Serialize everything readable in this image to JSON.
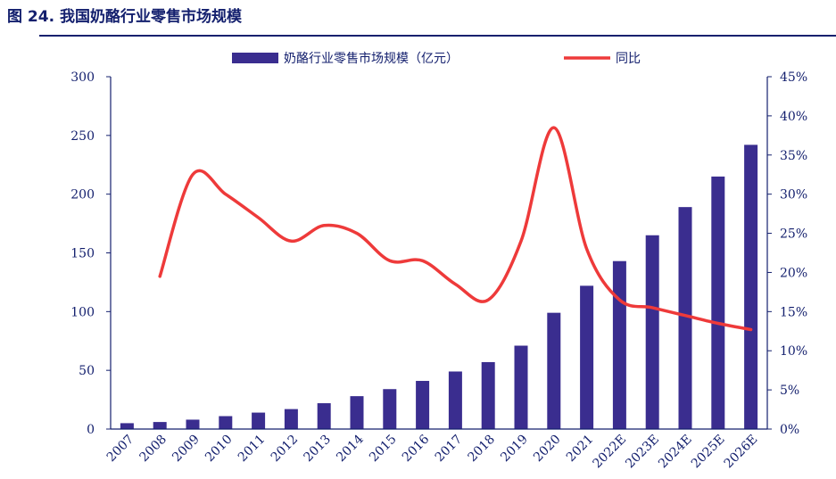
{
  "figure_title": "图 24. 我国奶酪行业零售市场规模",
  "chart_data": {
    "type": "bar",
    "categories": [
      "2007",
      "2008",
      "2009",
      "2010",
      "2011",
      "2012",
      "2013",
      "2014",
      "2015",
      "2016",
      "2017",
      "2018",
      "2019",
      "2020",
      "2021",
      "2022E",
      "2023E",
      "2024E",
      "2025E",
      "2026E"
    ],
    "series": [
      {
        "name": "奶酪行业零售市场规模（亿元）",
        "type": "bar",
        "axis": "left",
        "values": [
          5,
          6,
          8,
          11,
          14,
          17,
          22,
          28,
          34,
          41,
          49,
          57,
          71,
          99,
          122,
          143,
          165,
          189,
          215,
          242
        ]
      },
      {
        "name": "同比",
        "type": "line",
        "axis": "right",
        "values": [
          null,
          19.5,
          32.5,
          30.0,
          27.0,
          24.0,
          26.0,
          25.0,
          21.5,
          21.5,
          18.5,
          16.5,
          24.0,
          38.5,
          23.0,
          16.5,
          15.5,
          14.5,
          13.5,
          12.7
        ]
      }
    ],
    "ylim_left": [
      0,
      300
    ],
    "yticks_left": [
      "0",
      "50",
      "100",
      "150",
      "200",
      "250",
      "300"
    ],
    "ylim_right": [
      0,
      45
    ],
    "yticks_right": [
      "0%",
      "5%",
      "10%",
      "15%",
      "20%",
      "25%",
      "30%",
      "35%",
      "40%",
      "45%"
    ],
    "legend": "top",
    "colors": {
      "bar": "#3a2d8f",
      "line": "#ee3a3a",
      "axis": "#14206e"
    }
  }
}
